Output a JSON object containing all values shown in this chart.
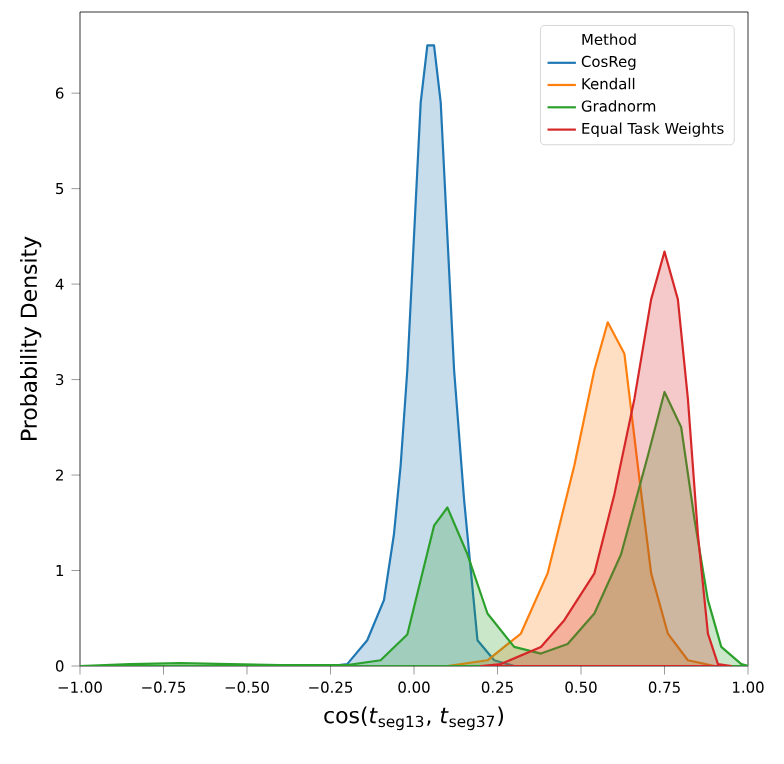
{
  "chart_data": {
    "type": "area",
    "xlabel": "cos(*t*$_{seg13}$, *t*$_{seg37}$)",
    "ylabel": "Probability Density",
    "legend_title": "Method",
    "legend": "top right",
    "grid": false,
    "xlim": [
      -1,
      1
    ],
    "ylim": [
      0,
      6.85
    ],
    "xticks": [
      {
        "value": -1,
        "label": "−1.00"
      },
      {
        "value": -0.75,
        "label": "−0.75"
      },
      {
        "value": -0.5,
        "label": "−0.50"
      },
      {
        "value": -0.25,
        "label": "−0.25"
      },
      {
        "value": 0,
        "label": "0.00"
      },
      {
        "value": 0.25,
        "label": "0.25"
      },
      {
        "value": 0.5,
        "label": "0.50"
      },
      {
        "value": 0.75,
        "label": "0.75"
      },
      {
        "value": 1,
        "label": "1.00"
      }
    ],
    "yticks": [
      0,
      1,
      2,
      3,
      4,
      5,
      6
    ],
    "series": [
      {
        "name": "CosReg",
        "color": "#1f77b4",
        "x": [
          -1,
          -0.5,
          -0.25,
          -0.2,
          -0.14,
          -0.09,
          -0.06,
          -0.04,
          -0.02,
          0,
          0.02,
          0.04,
          0.06,
          0.08,
          0.1,
          0.12,
          0.15,
          0.19,
          0.24,
          0.3
        ],
        "values": [
          0,
          0,
          0,
          0.02,
          0.27,
          0.69,
          1.38,
          2.1,
          3.1,
          4.5,
          5.9,
          6.5,
          6.5,
          5.9,
          4.5,
          3.1,
          1.74,
          0.27,
          0.06,
          0
        ]
      },
      {
        "name": "Kendall",
        "color": "#ff7f0e",
        "x": [
          0.1,
          0.22,
          0.32,
          0.4,
          0.48,
          0.54,
          0.58,
          0.63,
          0.67,
          0.71,
          0.76,
          0.82,
          0.9,
          1.0
        ],
        "values": [
          0,
          0.06,
          0.34,
          0.97,
          2.1,
          3.1,
          3.6,
          3.27,
          2.1,
          0.97,
          0.34,
          0.06,
          0,
          0
        ]
      },
      {
        "name": "Gradnorm",
        "color": "#2ca02c",
        "x": [
          -1,
          -0.85,
          -0.7,
          -0.55,
          -0.4,
          -0.2,
          -0.1,
          -0.02,
          0.02,
          0.06,
          0.1,
          0.16,
          0.22,
          0.3,
          0.38,
          0.46,
          0.54,
          0.62,
          0.7,
          0.75,
          0.8,
          0.84,
          0.88,
          0.92,
          0.98,
          1.0
        ],
        "values": [
          0,
          0.02,
          0.03,
          0.02,
          0.01,
          0.01,
          0.06,
          0.33,
          0.9,
          1.47,
          1.66,
          1.17,
          0.55,
          0.2,
          0.13,
          0.23,
          0.55,
          1.17,
          2.2,
          2.87,
          2.5,
          1.53,
          0.69,
          0.2,
          0.02,
          0
        ]
      },
      {
        "name": "Equal Task Weights",
        "color": "#d62728",
        "x": [
          0.2,
          0.26,
          0.38,
          0.45,
          0.54,
          0.6,
          0.66,
          0.71,
          0.75,
          0.79,
          0.82,
          0.85,
          0.88,
          0.91,
          0.95
        ],
        "values": [
          0,
          0.02,
          0.2,
          0.48,
          0.97,
          1.8,
          2.8,
          3.84,
          4.34,
          3.84,
          2.8,
          1.38,
          0.34,
          0.02,
          0
        ]
      }
    ]
  }
}
